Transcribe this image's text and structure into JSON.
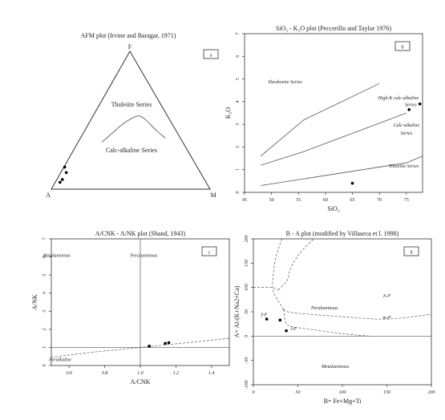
{
  "chart_data": [
    {
      "id": "a",
      "type": "ternary",
      "title": "AFM plot (Irvine and Baragar, 1971)",
      "panel_label": "a",
      "vertices": {
        "top": "F",
        "left": "A",
        "right": "M"
      },
      "fields": [
        "Tholeiite Series",
        "Calc-alkaline Series"
      ],
      "boundary": [
        [
          0.32,
          0.34
        ],
        [
          0.38,
          0.4
        ],
        [
          0.45,
          0.47
        ],
        [
          0.52,
          0.52
        ],
        [
          0.56,
          0.53
        ],
        [
          0.6,
          0.5
        ],
        [
          0.66,
          0.43
        ],
        [
          0.72,
          0.37
        ]
      ],
      "points": [
        [
          0.085,
          0.16
        ],
        [
          0.095,
          0.12
        ],
        [
          0.07,
          0.07
        ],
        [
          0.055,
          0.05
        ]
      ]
    },
    {
      "id": "b",
      "type": "scatter",
      "title": "SiO₂ - K₂O plot (Peccerillo and Taylor 1976)",
      "panel_label": "b",
      "xlabel": "SiO₂",
      "ylabel": "K₂O",
      "xlim": [
        45,
        78
      ],
      "ylim": [
        0,
        7
      ],
      "xticks": [
        45,
        50,
        55,
        60,
        65,
        70,
        75
      ],
      "yticks": [
        0,
        1,
        2,
        3,
        4,
        5,
        6,
        7
      ],
      "field_labels": [
        {
          "text": "Shoshonite Series",
          "x": 52.5,
          "y": 4.8
        },
        {
          "text": "High-K calc-alkaline",
          "x": 73.5,
          "y": 4.1
        },
        {
          "text": "Series",
          "x": 75.8,
          "y": 3.8
        },
        {
          "text": "Calc-alkaline",
          "x": 75,
          "y": 2.9
        },
        {
          "text": "Series",
          "x": 75,
          "y": 2.55
        },
        {
          "text": "Tholeiite Series",
          "x": 74.5,
          "y": 1.1
        }
      ],
      "lines": [
        [
          [
            48,
            1.6
          ],
          [
            56,
            3.2
          ],
          [
            70,
            4.8
          ]
        ],
        [
          [
            48,
            1.2
          ],
          [
            56,
            1.8
          ],
          [
            75,
            3.5
          ]
        ],
        [
          [
            48,
            0.3
          ],
          [
            75,
            1.3
          ],
          [
            78,
            1.6
          ]
        ]
      ],
      "points": [
        [
          65,
          0.4
        ],
        [
          75.5,
          3.65
        ],
        [
          77.5,
          3.9
        ]
      ]
    },
    {
      "id": "c",
      "type": "scatter",
      "title": "A/CNK - A/NK plot (Shand, 1943)",
      "panel_label": "c",
      "xlabel": "A/CNK",
      "ylabel": "A/NK",
      "xlim": [
        0.5,
        1.5
      ],
      "ylim": [
        0,
        7
      ],
      "xticks": [
        0.6,
        0.8,
        1.0,
        1.2,
        1.4
      ],
      "xtick_labels": [
        "0.6",
        "0.8",
        "1.0",
        "1.2",
        "1.4"
      ],
      "yticks": [
        0,
        1,
        2,
        3,
        4,
        5,
        6,
        7
      ],
      "field_labels": [
        {
          "text": "Metaluminous",
          "x": 0.53,
          "y": 6.0
        },
        {
          "text": "Peraluminous",
          "x": 1.02,
          "y": 6.0
        },
        {
          "text": "Peralkaline",
          "x": 0.55,
          "y": 0.25
        }
      ],
      "vline": 1.0,
      "hline": 1.0,
      "curve": [
        [
          0.5,
          0.45
        ],
        [
          0.7,
          0.7
        ],
        [
          0.9,
          0.9
        ],
        [
          1.1,
          1.1
        ],
        [
          1.3,
          1.3
        ],
        [
          1.5,
          1.5
        ]
      ],
      "points": [
        [
          1.05,
          1.07
        ],
        [
          1.14,
          1.22
        ],
        [
          1.16,
          1.26
        ]
      ]
    },
    {
      "id": "d",
      "type": "scatter",
      "title": "B - A plot (modified by Villaseca et l. 1998)",
      "panel_label": "d",
      "xlabel": "B= Fe+Mg+Ti",
      "ylabel": "A= Al-(K+Na2+Ca)",
      "xlim": [
        0,
        200
      ],
      "ylim": [
        -100,
        200
      ],
      "xticks": [
        0,
        50,
        100,
        150,
        200
      ],
      "yticks": [
        -100,
        -50,
        0,
        50,
        100,
        150,
        200
      ],
      "field_labels": [
        {
          "text": "h-P",
          "x": 150,
          "y": 80
        },
        {
          "text": "Peraluminous",
          "x": 80,
          "y": 55
        },
        {
          "text": "m-P",
          "x": 150,
          "y": 35
        },
        {
          "text": "f-P",
          "x": 12,
          "y": 41
        },
        {
          "text": "l-P",
          "x": 45,
          "y": 12
        },
        {
          "text": "Metaluminous",
          "x": 92,
          "y": -65
        }
      ],
      "hline": 0,
      "curves": [
        [
          [
            32,
            200
          ],
          [
            25,
            160
          ],
          [
            22,
            120
          ],
          [
            22,
            95
          ],
          [
            27,
            75
          ],
          [
            34,
            55
          ]
        ],
        [
          [
            0,
            100
          ],
          [
            20,
            100
          ],
          [
            28,
            95
          ]
        ],
        [
          [
            34,
            55
          ],
          [
            45,
            48
          ],
          [
            100,
            40
          ],
          [
            150,
            35
          ],
          [
            200,
            45
          ]
        ],
        [
          [
            34,
            55
          ],
          [
            36,
            30
          ],
          [
            42,
            20
          ],
          [
            60,
            15
          ],
          [
            100,
            5
          ],
          [
            130,
            0
          ]
        ],
        [
          [
            28,
            95
          ],
          [
            38,
            115
          ],
          [
            42,
            140
          ],
          [
            52,
            170
          ],
          [
            68,
            200
          ]
        ]
      ],
      "points": [
        [
          15,
          35
        ],
        [
          30,
          33
        ],
        [
          37,
          11
        ]
      ]
    }
  ]
}
